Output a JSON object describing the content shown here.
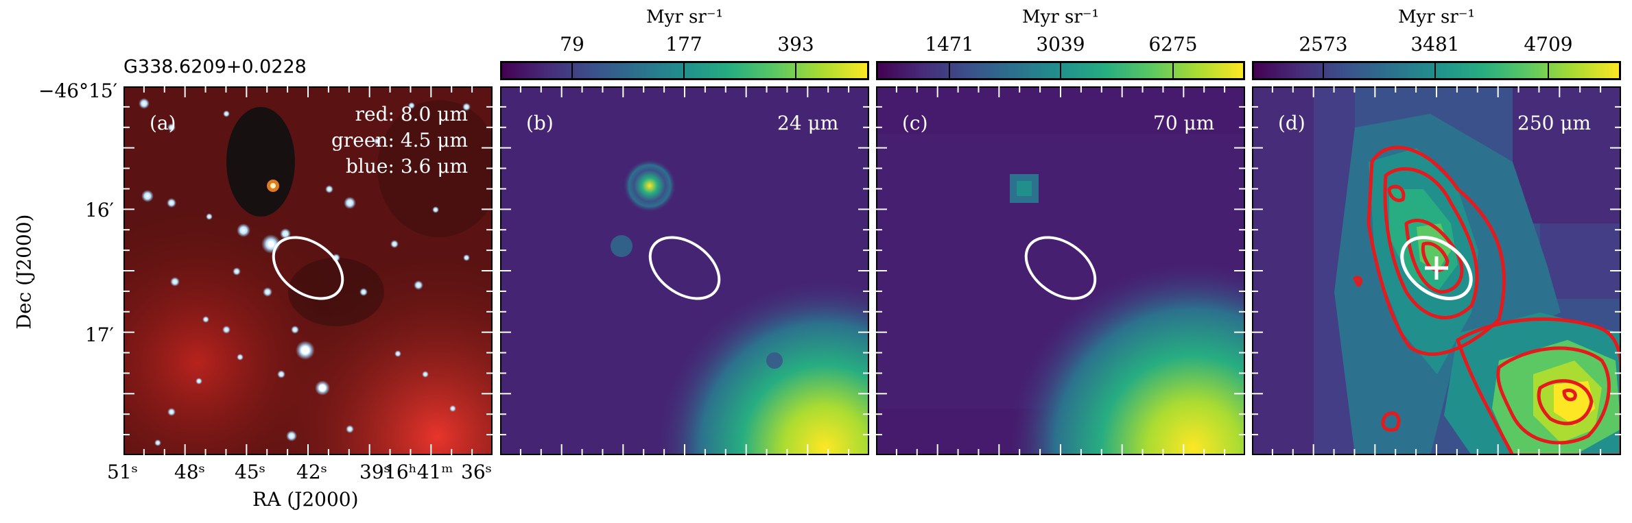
{
  "figure": {
    "source_title": "G338.6209+0.0228",
    "y_axis_label": "Dec (J2000)",
    "x_axis_label": "RA (J2000)",
    "y_ticks": [
      "−46°15′",
      "16′",
      "17′"
    ],
    "x_ticks": [
      "51ˢ",
      "48ˢ",
      "45ˢ",
      "42ˢ",
      "39ˢ",
      "16ʰ41ᵐ",
      "36ˢ"
    ]
  },
  "panels": [
    {
      "id": "a",
      "label": "(a)",
      "composite": [
        "red: 8.0 μm",
        "green: 4.5 μm",
        "blue: 3.6 μm"
      ]
    },
    {
      "id": "b",
      "label": "(b)",
      "band": "24 μm",
      "colorbar_unit": "Myr sr⁻¹",
      "colorbar_ticks": [
        "79",
        "177",
        "393"
      ],
      "colormap": "viridis"
    },
    {
      "id": "c",
      "label": "(c)",
      "band": "70 μm",
      "colorbar_unit": "Myr sr⁻¹",
      "colorbar_ticks": [
        "1471",
        "3039",
        "6275"
      ],
      "colormap": "viridis"
    },
    {
      "id": "d",
      "label": "(d)",
      "band": "250 μm",
      "colorbar_unit": "Myr sr⁻¹",
      "colorbar_ticks": [
        "2573",
        "3481",
        "4709"
      ],
      "colormap": "viridis",
      "overlay": "red contours, white ellipse and cross"
    }
  ],
  "colors": {
    "viridis_dark": "#440154",
    "viridis_mid": "#21918c",
    "viridis_bright": "#fde725",
    "contour": "#e41a1c",
    "ellipse": "#ffffff"
  }
}
